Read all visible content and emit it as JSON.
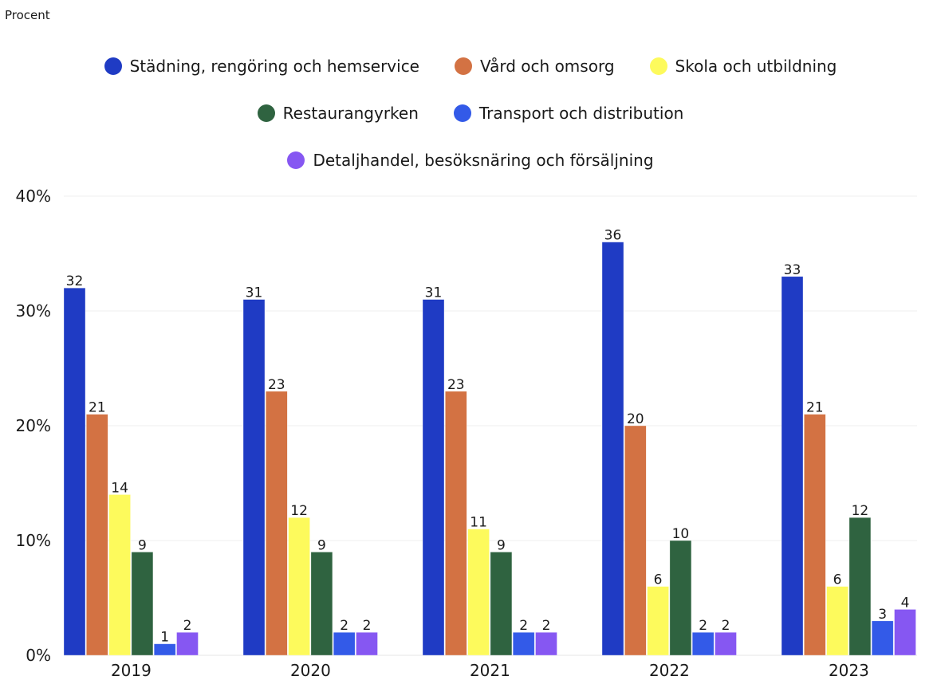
{
  "chart_data": {
    "type": "bar",
    "title": "",
    "ylabel": "Procent",
    "xlabel": "",
    "ylim": [
      0,
      40
    ],
    "yticks": [
      "0%",
      "10%",
      "20%",
      "30%",
      "40%"
    ],
    "ytick_values": [
      0,
      10,
      20,
      30,
      40
    ],
    "grid": true,
    "legend_position": "top-center",
    "categories": [
      "2019",
      "2020",
      "2021",
      "2022",
      "2023"
    ],
    "series": [
      {
        "name": "Städning, rengöring och hemservice",
        "color": "#1f3bc4",
        "values": [
          32,
          31,
          31,
          36,
          33
        ]
      },
      {
        "name": "Vård och omsorg",
        "color": "#d37243",
        "values": [
          21,
          23,
          23,
          20,
          21
        ]
      },
      {
        "name": "Skola och utbildning",
        "color": "#fdfa5c",
        "values": [
          14,
          12,
          11,
          6,
          6
        ]
      },
      {
        "name": "Restaurangyrken",
        "color": "#2f6340",
        "values": [
          9,
          9,
          9,
          10,
          12
        ]
      },
      {
        "name": "Transport och distribution",
        "color": "#335ae8",
        "values": [
          1,
          2,
          2,
          2,
          3
        ]
      },
      {
        "name": "Detaljhandel, besöksnäring och försäljning",
        "color": "#8657f2",
        "values": [
          2,
          2,
          2,
          2,
          4
        ]
      }
    ]
  }
}
